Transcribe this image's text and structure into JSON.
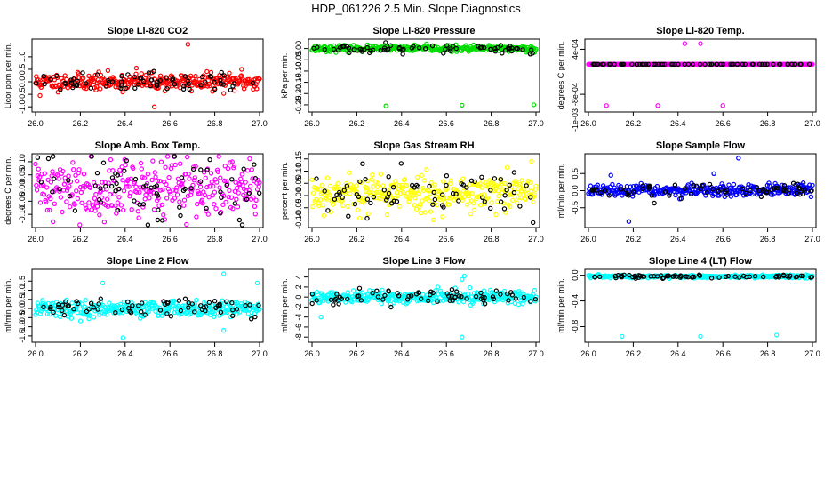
{
  "figure": {
    "title": "HDP_061226  2.5 Min. Slope Diagnostics"
  },
  "chart_data": [
    {
      "type": "scatter",
      "title": "Slope Li-820 CO2",
      "xlabel": "",
      "ylabel": "Licor ppm per min.",
      "xlim": [
        26.0,
        27.0
      ],
      "ylim": [
        -1.1,
        1.6
      ],
      "xticks": [
        "26.0",
        "26.2",
        "26.4",
        "26.6",
        "26.8",
        "27.0"
      ],
      "yticks": [
        -1.0,
        -0.5,
        0.0,
        0.5,
        1.0
      ],
      "ytick_labels": [
        "-1.0",
        "-0.5",
        "0.0",
        "0.5",
        "1.0"
      ],
      "colors": {
        "main": "#ff0000",
        "highlight": "#000000"
      },
      "band": {
        "center": 0.0,
        "spread": 0.3
      },
      "outliers": [
        [
          26.45,
          0.55
        ],
        [
          26.53,
          -1.0
        ],
        [
          26.68,
          1.5
        ],
        [
          26.92,
          0.5
        ],
        [
          26.02,
          -0.55
        ]
      ],
      "seed": 11
    },
    {
      "type": "scatter",
      "title": "Slope Li-820 Pressure",
      "xlabel": "",
      "ylabel": "kPa per min.",
      "xlim": [
        26.0,
        27.0
      ],
      "ylim": [
        -0.27,
        0.03
      ],
      "xticks": [
        "26.0",
        "26.2",
        "26.4",
        "26.6",
        "26.8",
        "27.0"
      ],
      "yticks": [
        0.0,
        -0.05,
        -0.1,
        -0.15,
        -0.2,
        -0.25
      ],
      "ytick_labels": [
        "0.00",
        "-0.05",
        "-0.10",
        "-0.15",
        "-0.20",
        "-0.25"
      ],
      "colors": {
        "main": "#00dd00",
        "highlight": "#000000"
      },
      "band": {
        "center": 0.0,
        "spread": 0.012
      },
      "outliers": [
        [
          26.33,
          -0.255
        ],
        [
          26.67,
          -0.252
        ],
        [
          26.99,
          -0.25
        ]
      ],
      "seed": 23
    },
    {
      "type": "scatter",
      "title": "Slope Li-820 Temp.",
      "xlabel": "",
      "ylabel": "degrees C per min.",
      "xlim": [
        26.0,
        27.0
      ],
      "ylim": [
        -0.0012,
        0.0006
      ],
      "xticks": [
        "26.0",
        "26.2",
        "26.4",
        "26.6",
        "26.8",
        "27.0"
      ],
      "yticks": [
        0.0004,
        -0.0008
      ],
      "ytick_labels": [
        "4e-04",
        "-8e-04"
      ],
      "extra_ytick_labels": [
        "-1e-03"
      ],
      "colors": {
        "main": "#ff00ff",
        "highlight": "#000000"
      },
      "band": {
        "center": 0.0,
        "spread": 0.0
      },
      "outliers": [
        [
          26.08,
          -0.0011
        ],
        [
          26.31,
          -0.0011
        ],
        [
          26.6,
          -0.0011
        ],
        [
          26.43,
          0.00055
        ],
        [
          26.5,
          0.00055
        ]
      ],
      "seed": 31
    },
    {
      "type": "scatter",
      "title": "Slope Amb. Box Temp.",
      "xlabel": "",
      "ylabel": "degrees C per min.",
      "xlim": [
        26.0,
        27.0
      ],
      "ylim": [
        -0.14,
        0.12
      ],
      "xticks": [
        "26.0",
        "26.2",
        "26.4",
        "26.6",
        "26.8",
        "27.0"
      ],
      "yticks": [
        -0.1,
        -0.05,
        0.0,
        0.05,
        0.1
      ],
      "ytick_labels": [
        "-0.10",
        "-0.05",
        "0.00",
        "0.05",
        "0.10"
      ],
      "colors": {
        "main": "#ff00ff",
        "highlight": "#000000"
      },
      "band": {
        "center": 0.0,
        "spread": 0.1
      },
      "outliers": [],
      "seed": 41
    },
    {
      "type": "scatter",
      "title": "Slope Gas Stream RH",
      "xlabel": "",
      "ylabel": "percent per min.",
      "xlim": [
        26.0,
        27.0
      ],
      "ylim": [
        -0.12,
        0.16
      ],
      "xticks": [
        "26.0",
        "26.2",
        "26.4",
        "26.6",
        "26.8",
        "27.0"
      ],
      "yticks": [
        -0.1,
        -0.05,
        0.0,
        0.05,
        0.1,
        0.15
      ],
      "ytick_labels": [
        "-0.10",
        "-0.05",
        "0.00",
        "0.05",
        "0.10",
        "0.15"
      ],
      "colors": {
        "main": "#ffff00",
        "highlight": "#000000"
      },
      "band": {
        "center": 0.01,
        "spread": 0.07
      },
      "outliers": [
        [
          26.98,
          0.14
        ]
      ],
      "seed": 53
    },
    {
      "type": "scatter",
      "title": "Slope Sample Flow",
      "xlabel": "",
      "ylabel": "ml/min per min.",
      "xlim": [
        26.0,
        27.0
      ],
      "ylim": [
        -1.0,
        1.0
      ],
      "xticks": [
        "26.0",
        "26.2",
        "26.4",
        "26.6",
        "26.8",
        "27.0"
      ],
      "yticks": [
        -0.5,
        0.0,
        0.5
      ],
      "ytick_labels": [
        "-0.5",
        "0.0",
        "0.5"
      ],
      "colors": {
        "main": "#0000ff",
        "highlight": "#000000"
      },
      "band": {
        "center": 0.0,
        "spread": 0.15
      },
      "outliers": [
        [
          26.67,
          0.95
        ],
        [
          26.18,
          -0.9
        ],
        [
          26.1,
          0.45
        ],
        [
          26.56,
          0.5
        ]
      ],
      "seed": 67
    },
    {
      "type": "scatter",
      "title": "Slope Line 2 Flow",
      "xlabel": "",
      "ylabel": "ml/min per min.",
      "xlim": [
        26.0,
        27.0
      ],
      "ylim": [
        -1.7,
        2.0
      ],
      "xticks": [
        "26.0",
        "26.2",
        "26.4",
        "26.6",
        "26.8",
        "27.0"
      ],
      "yticks": [
        -1.5,
        -1.0,
        -0.5,
        0.0,
        0.5,
        1.0,
        1.5
      ],
      "ytick_labels": [
        "-1.5",
        "-1.0",
        "-0.5",
        "0.0",
        "0.5",
        "1.0",
        "1.5"
      ],
      "colors": {
        "main": "#00ffff",
        "highlight": "#000000"
      },
      "band": {
        "center": 0.0,
        "spread": 0.4
      },
      "outliers": [
        [
          26.39,
          -1.6
        ],
        [
          26.84,
          1.9
        ],
        [
          26.84,
          -1.2
        ],
        [
          26.3,
          1.4
        ],
        [
          26.99,
          1.4
        ]
      ],
      "seed": 79
    },
    {
      "type": "scatter",
      "title": "Slope Line 3 Flow",
      "xlabel": "",
      "ylabel": "ml/min per min.",
      "xlim": [
        26.0,
        27.0
      ],
      "ylim": [
        -8.5,
        5.0
      ],
      "xticks": [
        "26.0",
        "26.2",
        "26.4",
        "26.6",
        "26.8",
        "27.0"
      ],
      "yticks": [
        -8,
        -6,
        -4,
        -2,
        0,
        2,
        4
      ],
      "ytick_labels": [
        "-8",
        "-6",
        "-4",
        "-2",
        "0",
        "2",
        "4"
      ],
      "colors": {
        "main": "#00ffff",
        "highlight": "#000000"
      },
      "band": {
        "center": 0.0,
        "spread": 1.2
      },
      "outliers": [
        [
          26.67,
          -8.0
        ],
        [
          26.68,
          4.2
        ],
        [
          26.04,
          -4.0
        ],
        [
          26.67,
          3.5
        ]
      ],
      "seed": 89
    },
    {
      "type": "scatter",
      "title": "Slope Line 4 (LT) Flow",
      "xlabel": "",
      "ylabel": "ml/min per min.",
      "xlim": [
        26.0,
        27.0
      ],
      "ylim": [
        -1.0,
        0.05
      ],
      "xticks": [
        "26.0",
        "26.2",
        "26.4",
        "26.6",
        "26.8",
        "27.0"
      ],
      "yticks": [
        0.0,
        -0.4,
        -0.8
      ],
      "ytick_labels": [
        "0.0",
        "-0.4",
        "-0.8"
      ],
      "colors": {
        "main": "#00ffff",
        "highlight": "#000000"
      },
      "band": {
        "center": -0.02,
        "spread": 0.02
      },
      "outliers": [
        [
          26.15,
          -0.95
        ],
        [
          26.5,
          -0.95
        ],
        [
          26.84,
          -0.93
        ]
      ],
      "seed": 97
    }
  ]
}
